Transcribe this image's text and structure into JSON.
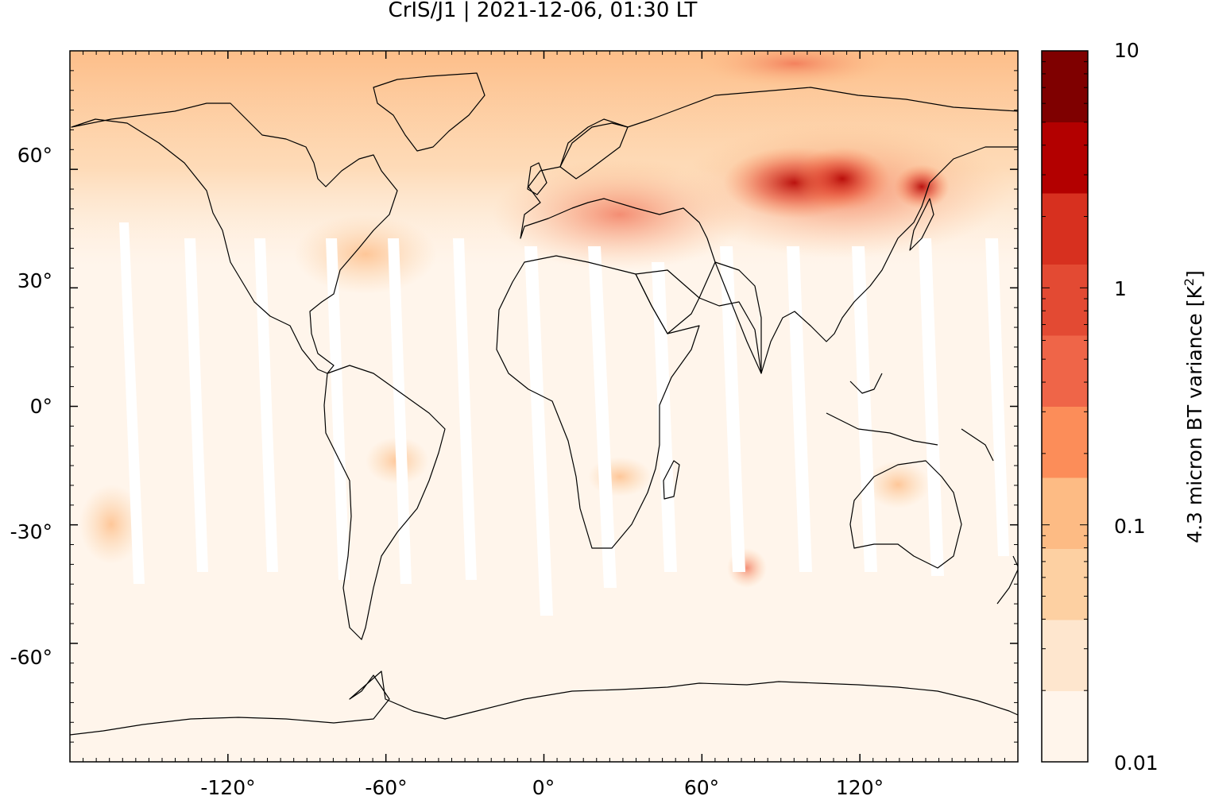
{
  "title": "CrIS/J1 | 2021-12-06, 01:30 LT",
  "map": {
    "projection": "plate-carree",
    "lon_range": [
      -180,
      180
    ],
    "lat_range": [
      -90,
      90
    ],
    "lon_ticks": [
      "-120°",
      "-60°",
      "0°",
      "60°",
      "120°"
    ],
    "lon_tick_values": [
      -120,
      -60,
      0,
      60,
      120
    ],
    "lat_ticks": [
      "60°",
      "30°",
      "0°",
      "-30°",
      "-60°"
    ],
    "lat_tick_values": [
      60,
      30,
      0,
      -30,
      -60
    ],
    "field": "4.3 micron BT variance",
    "background_color": "#fff5eb"
  },
  "colorbar": {
    "label": "4.3 micron BT variance [K",
    "label_superscript": "2",
    "label_suffix": "]",
    "scale": "log",
    "range": [
      0.01,
      10
    ],
    "tick_labels": [
      "10",
      "1",
      "0.1",
      "0.01"
    ],
    "tick_values": [
      10,
      1,
      0.1,
      0.01
    ],
    "colors": [
      "#fff5eb",
      "#fee6ce",
      "#fdd0a2",
      "#fdbb84",
      "#fc8d59",
      "#ef6548",
      "#e34a33",
      "#d7301f",
      "#b30000",
      "#7f0000"
    ]
  }
}
